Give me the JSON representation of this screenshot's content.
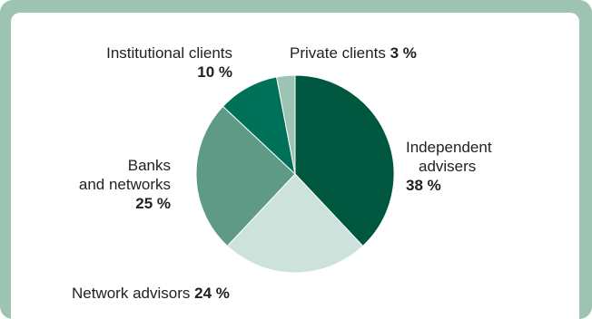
{
  "chart_data": {
    "type": "pie",
    "title": "",
    "slices": [
      {
        "label_lines": [
          "Independent",
          "advisers"
        ],
        "value": 38,
        "value_text": "38 %",
        "color": "#00573f"
      },
      {
        "label_lines": [
          "Network advisors"
        ],
        "value": 24,
        "value_text": "24 %",
        "color": "#cde2da"
      },
      {
        "label_lines": [
          "Banks",
          "and networks"
        ],
        "value": 25,
        "value_text": "25 %",
        "color": "#5e9a85"
      },
      {
        "label_lines": [
          "Institutional clients"
        ],
        "value": 10,
        "value_text": "10 %",
        "color": "#007159"
      },
      {
        "label_lines": [
          "Private clients"
        ],
        "value": 3,
        "value_text": "3 %",
        "color": "#9dc3b3"
      }
    ],
    "start_angle_deg": 0,
    "direction": "clockwise",
    "legend": "none"
  }
}
